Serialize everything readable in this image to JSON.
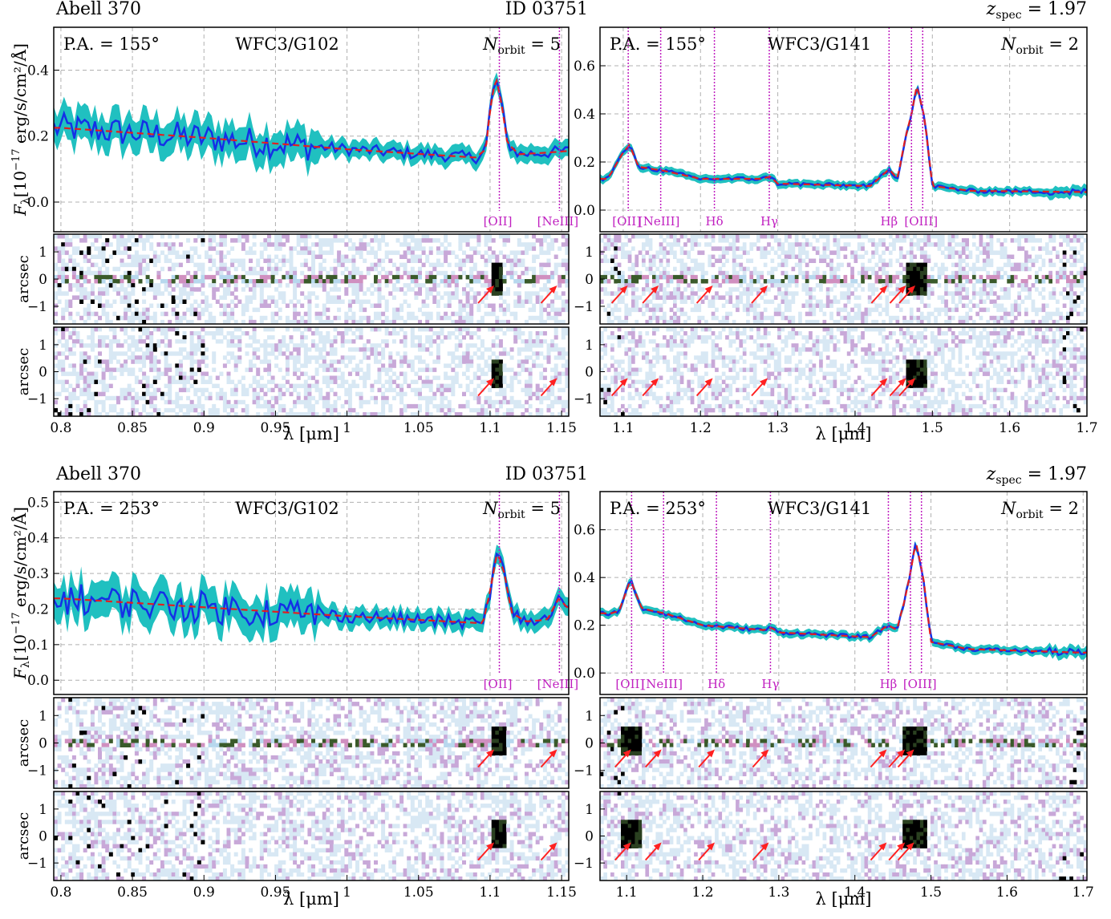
{
  "figure": {
    "colors": {
      "spectrum": "#1430e6",
      "error_band": "#20c0c0",
      "model": "#e02020",
      "lines": "#c020c0",
      "arrows": "#ff2020",
      "grid": "#b0b0b0"
    }
  },
  "chart_data": [
    {
      "type": "line",
      "panel": "top-left",
      "header": {
        "left": "Abell 370",
        "right": "ID 03751"
      },
      "pa": "P.A. = 155°",
      "grism": "WFC3/G102",
      "norbit": {
        "var": "N",
        "sub": "orbit",
        "val": " = 5"
      },
      "ylabel": "",
      "ylim": [
        -0.09,
        0.53
      ],
      "yticks": [
        "0.0",
        "0.2",
        "0.4"
      ],
      "xlim": [
        0.795,
        1.155
      ],
      "xticks": [
        "0.8",
        "0.85",
        "0.9",
        "0.95",
        "1",
        "1.05",
        "1.1",
        "1.15"
      ],
      "lines": [
        {
          "x": 1.1065,
          "label": "[OII]"
        },
        {
          "x": 1.1485,
          "label": "[NeIII]"
        }
      ],
      "model_x": [
        0.8,
        0.9,
        1.0,
        1.09,
        1.097,
        1.1,
        1.104,
        1.108,
        1.112,
        1.12,
        1.14,
        1.155
      ],
      "model_y": [
        0.225,
        0.195,
        0.16,
        0.135,
        0.16,
        0.28,
        0.38,
        0.3,
        0.18,
        0.145,
        0.15,
        0.155
      ],
      "arrows_row1": [
        1.104,
        1.148
      ],
      "arrows_row2": [
        1.104,
        1.148
      ]
    },
    {
      "type": "line",
      "panel": "top-right",
      "header": {
        "left": "",
        "right": ""
      },
      "zspec": "= 1.97",
      "pa": "P.A. = 155°",
      "grism": "WFC3/G141",
      "norbit": {
        "var": "N",
        "sub": "orbit",
        "val": " = 2"
      },
      "ylim": [
        -0.09,
        0.76
      ],
      "yticks": [
        "0.0",
        "0.2",
        "0.4",
        "0.6"
      ],
      "xlim": [
        1.07,
        1.7
      ],
      "xticks": [
        "1.1",
        "1.2",
        "1.3",
        "1.4",
        "1.5",
        "1.6",
        "1.7"
      ],
      "lines": [
        {
          "x": 1.1065,
          "label": "[OII]"
        },
        {
          "x": 1.1485,
          "label": "[NeIII]"
        },
        {
          "x": 1.218,
          "label": "Hδ"
        },
        {
          "x": 1.289,
          "label": "Hγ"
        },
        {
          "x": 1.444,
          "label": "Hβ"
        },
        {
          "x": 1.473,
          "label": ""
        },
        {
          "x": 1.4875,
          "label": "[OIII]"
        }
      ],
      "model_x": [
        1.08,
        1.1,
        1.108,
        1.12,
        1.15,
        1.2,
        1.28,
        1.29,
        1.3,
        1.42,
        1.444,
        1.455,
        1.465,
        1.473,
        1.48,
        1.49,
        1.5,
        1.55,
        1.7
      ],
      "model_y": [
        0.13,
        0.24,
        0.27,
        0.18,
        0.165,
        0.13,
        0.13,
        0.14,
        0.11,
        0.1,
        0.17,
        0.13,
        0.3,
        0.4,
        0.52,
        0.38,
        0.1,
        0.08,
        0.075
      ],
      "arrows_row1": [
        1.108,
        1.148,
        1.218,
        1.289,
        1.444,
        1.468,
        1.48
      ],
      "arrows_row2": [
        1.108,
        1.148,
        1.218,
        1.289,
        1.444,
        1.468,
        1.48
      ]
    },
    {
      "type": "line",
      "panel": "bottom-left",
      "header": {
        "left": "Abell 370",
        "right": "ID 03751"
      },
      "pa": "P.A. = 253°",
      "grism": "WFC3/G102",
      "norbit": {
        "var": "N",
        "sub": "orbit",
        "val": " = 5"
      },
      "ylim": [
        -0.04,
        0.53
      ],
      "yticks": [
        "0.0",
        "0.1",
        "0.2",
        "0.3",
        "0.4",
        "0.5"
      ],
      "xlim": [
        0.795,
        1.155
      ],
      "xticks": [
        "0.8",
        "0.85",
        "0.9",
        "0.95",
        "1",
        "1.05",
        "1.1",
        "1.15"
      ],
      "lines": [
        {
          "x": 1.1065,
          "label": "[OII]"
        },
        {
          "x": 1.1485,
          "label": "[NeIII]"
        }
      ],
      "model_x": [
        0.8,
        0.9,
        1.0,
        1.095,
        1.1,
        1.105,
        1.11,
        1.115,
        1.125,
        1.14,
        1.148,
        1.155
      ],
      "model_y": [
        0.23,
        0.205,
        0.18,
        0.16,
        0.25,
        0.36,
        0.3,
        0.19,
        0.165,
        0.17,
        0.23,
        0.2
      ],
      "arrows_row1": [
        1.104,
        1.148
      ],
      "arrows_row2": [
        1.104,
        1.148
      ]
    },
    {
      "type": "line",
      "panel": "bottom-right",
      "header": {
        "left": "",
        "right": ""
      },
      "zspec": "= 1.97",
      "pa": "P.A. = 253°",
      "grism": "WFC3/G141",
      "norbit": {
        "var": "N",
        "sub": "orbit",
        "val": " = 2"
      },
      "ylim": [
        -0.09,
        0.76
      ],
      "yticks": [
        "0.0",
        "0.2",
        "0.4",
        "0.6"
      ],
      "xlim": [
        1.065,
        1.705
      ],
      "xticks": [
        "1.1",
        "1.2",
        "1.3",
        "1.4",
        "1.5",
        "1.6",
        "1.7"
      ],
      "lines": [
        {
          "x": 1.1065,
          "label": "[OII]"
        },
        {
          "x": 1.1485,
          "label": "[NeIII]"
        },
        {
          "x": 1.218,
          "label": "Hδ"
        },
        {
          "x": 1.289,
          "label": "Hγ"
        },
        {
          "x": 1.444,
          "label": "Hβ"
        },
        {
          "x": 1.473,
          "label": ""
        },
        {
          "x": 1.4875,
          "label": "[OIII]"
        }
      ],
      "model_x": [
        1.08,
        1.09,
        1.105,
        1.12,
        1.15,
        1.2,
        1.28,
        1.29,
        1.3,
        1.42,
        1.444,
        1.455,
        1.465,
        1.473,
        1.48,
        1.49,
        1.5,
        1.55,
        1.7
      ],
      "model_y": [
        0.25,
        0.26,
        0.39,
        0.27,
        0.25,
        0.2,
        0.18,
        0.19,
        0.17,
        0.15,
        0.2,
        0.18,
        0.3,
        0.42,
        0.55,
        0.4,
        0.13,
        0.1,
        0.085
      ],
      "arrows_row1": [
        1.108,
        1.148,
        1.218,
        1.289,
        1.444,
        1.468,
        1.48
      ],
      "arrows_row2": [
        1.108,
        1.148,
        1.218,
        1.289,
        1.444,
        1.468,
        1.48
      ]
    }
  ],
  "labels": {
    "flux_ylabel_main": "F",
    "flux_ylabel_sub": "λ",
    "flux_ylabel_units": "[10",
    "flux_ylabel_exp": "−17",
    "flux_ylabel_tail": "erg/s/cm²/Å]",
    "arcsec": "arcsec",
    "xlabel": "λ [μm]",
    "image_yticks": [
      "1",
      "0",
      "−1"
    ],
    "zspec_var": "z",
    "zspec_sub": "spec"
  }
}
